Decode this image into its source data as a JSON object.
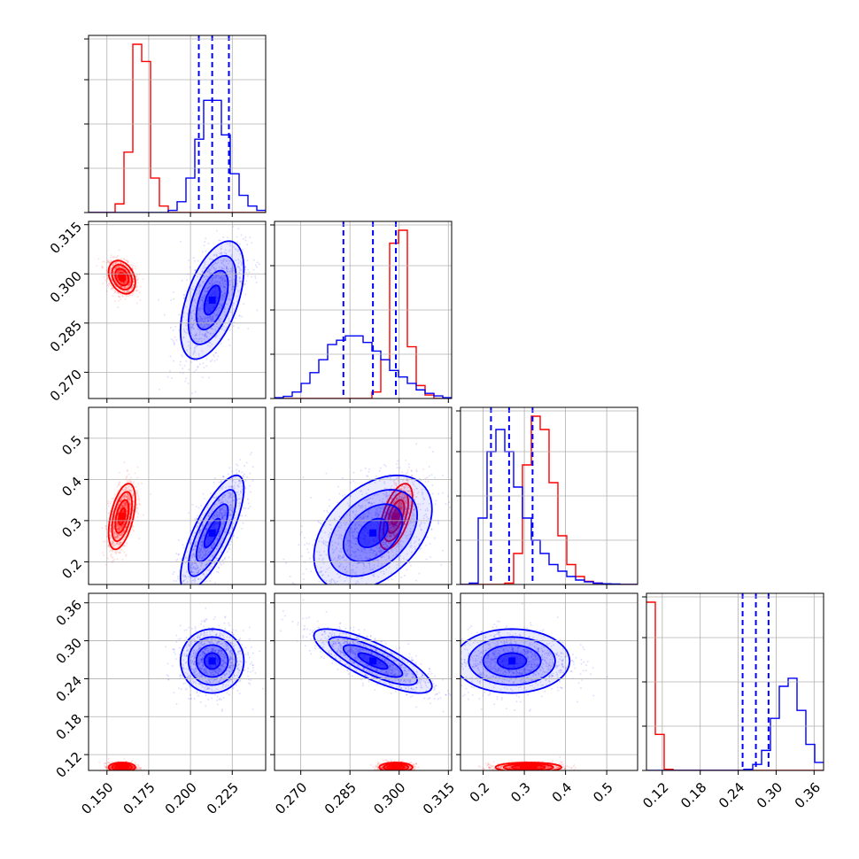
{
  "colors": {
    "series_a": "#ff0000",
    "series_b": "#0000ff",
    "grid": "#b0b0b0",
    "frame": "#000000"
  },
  "chart_data": {
    "type": "scatter",
    "layout": "corner-plot",
    "title": "",
    "params": [
      {
        "range": [
          0.139,
          0.245
        ],
        "ticks": [
          0.15,
          0.175,
          0.2,
          0.225
        ],
        "tick_labels": [
          "0.150",
          "0.175",
          "0.200",
          "0.225"
        ]
      },
      {
        "range": [
          0.262,
          0.316
        ],
        "ticks": [
          0.27,
          0.285,
          0.3,
          0.315
        ],
        "tick_labels": [
          "0.270",
          "0.285",
          "0.300",
          "0.315"
        ]
      },
      {
        "range": [
          0.145,
          0.575
        ],
        "ticks": [
          0.2,
          0.3,
          0.4,
          0.5
        ],
        "tick_labels": [
          "0.2",
          "0.3",
          "0.4",
          "0.5"
        ]
      },
      {
        "range": [
          0.095,
          0.375
        ],
        "ticks": [
          0.12,
          0.18,
          0.24,
          0.3,
          0.36
        ],
        "tick_labels": [
          "0.12",
          "0.18",
          "0.24",
          "0.30",
          "0.36"
        ]
      }
    ],
    "grid": true,
    "series": [
      {
        "color": "#ff0000",
        "hist1d": [
          {
            "edges": [
              0.139,
              0.245
            ],
            "counts": [
              0,
              0,
              0,
              200,
              1400,
              3900,
              3500,
              800,
              150,
              0,
              0,
              0,
              0,
              0,
              0,
              0,
              0,
              0,
              0,
              0
            ]
          },
          {
            "edges": [
              0.262,
              0.316
            ],
            "counts": [
              0,
              0,
              0,
              0,
              0,
              0,
              0,
              0,
              0,
              0,
              0,
              150,
              900,
              3600,
              3900,
              1200,
              300,
              80,
              0,
              0
            ]
          },
          {
            "edges": [
              0.145,
              0.575
            ],
            "counts": [
              0,
              0,
              0,
              0,
              0,
              30,
              700,
              2700,
              3800,
              3500,
              2300,
              1100,
              450,
              180,
              70,
              30,
              10,
              0,
              0,
              0
            ]
          },
          {
            "edges": [
              0.095,
              0.375
            ],
            "counts": [
              4200,
              900,
              30,
              0,
              0,
              0,
              0,
              0,
              0,
              0,
              0,
              0,
              0,
              0,
              0,
              0,
              0,
              0,
              0,
              0
            ]
          }
        ],
        "mean": [
          0.159,
          0.299,
          0.31,
          0.1
        ],
        "cov": [
          [
            1.6e-05,
            -3.2e-06,
            8e-05,
            0.0
          ],
          [
            -3.2e-06,
            6.4e-06,
            5.76e-05,
            0.0
          ],
          [
            8e-05,
            5.76e-05,
            0.0016,
            0.0
          ],
          [
            0.0,
            0.0,
            0.0,
            1.44e-05
          ]
        ]
      },
      {
        "color": "#0000ff",
        "hist1d": [
          {
            "edges": [
              0.139,
              0.245
            ],
            "counts": [
              0,
              0,
              0,
              0,
              0,
              0,
              0,
              0,
              0,
              50,
              250,
              800,
              1700,
              2600,
              2600,
              1800,
              900,
              400,
              150,
              50
            ]
          },
          {
            "edges": [
              0.262,
              0.316
            ],
            "counts": [
              20,
              50,
              150,
              350,
              600,
              900,
              1250,
              1350,
              1450,
              1450,
              1300,
              1100,
              900,
              650,
              500,
              350,
              200,
              120,
              60,
              20
            ]
          },
          {
            "edges": [
              0.145,
              0.575
            ],
            "counts": [
              0,
              30,
              1500,
              3000,
              3500,
              3000,
              2200,
              1500,
              1000,
              700,
              450,
              300,
              180,
              100,
              60,
              30,
              15,
              10,
              0,
              0
            ]
          },
          {
            "edges": [
              0.095,
              0.375
            ],
            "counts": [
              0,
              0,
              0,
              0,
              0,
              0,
              0,
              0,
              0,
              0,
              0,
              30,
              150,
              500,
              1300,
              2100,
              2300,
              1500,
              650,
              200
            ]
          }
        ],
        "mean": [
          0.213,
          0.292,
          0.27,
          0.268
        ],
        "cov": [
          [
            9e-05,
            4.5e-05,
            0.00051,
            0.0
          ],
          [
            4.5e-05,
            8.1e-05,
            0.00026,
            -0.00018
          ],
          [
            0.00051,
            0.00026,
            0.0049,
            0.0
          ],
          [
            0.0,
            -0.00018,
            0.0,
            0.00064
          ]
        ],
        "quantiles": [
          [
            0.205,
            0.213,
            0.223
          ],
          [
            0.283,
            0.292,
            0.299
          ],
          [
            0.219,
            0.263,
            0.32
          ],
          [
            0.247,
            0.268,
            0.288
          ]
        ]
      }
    ]
  }
}
